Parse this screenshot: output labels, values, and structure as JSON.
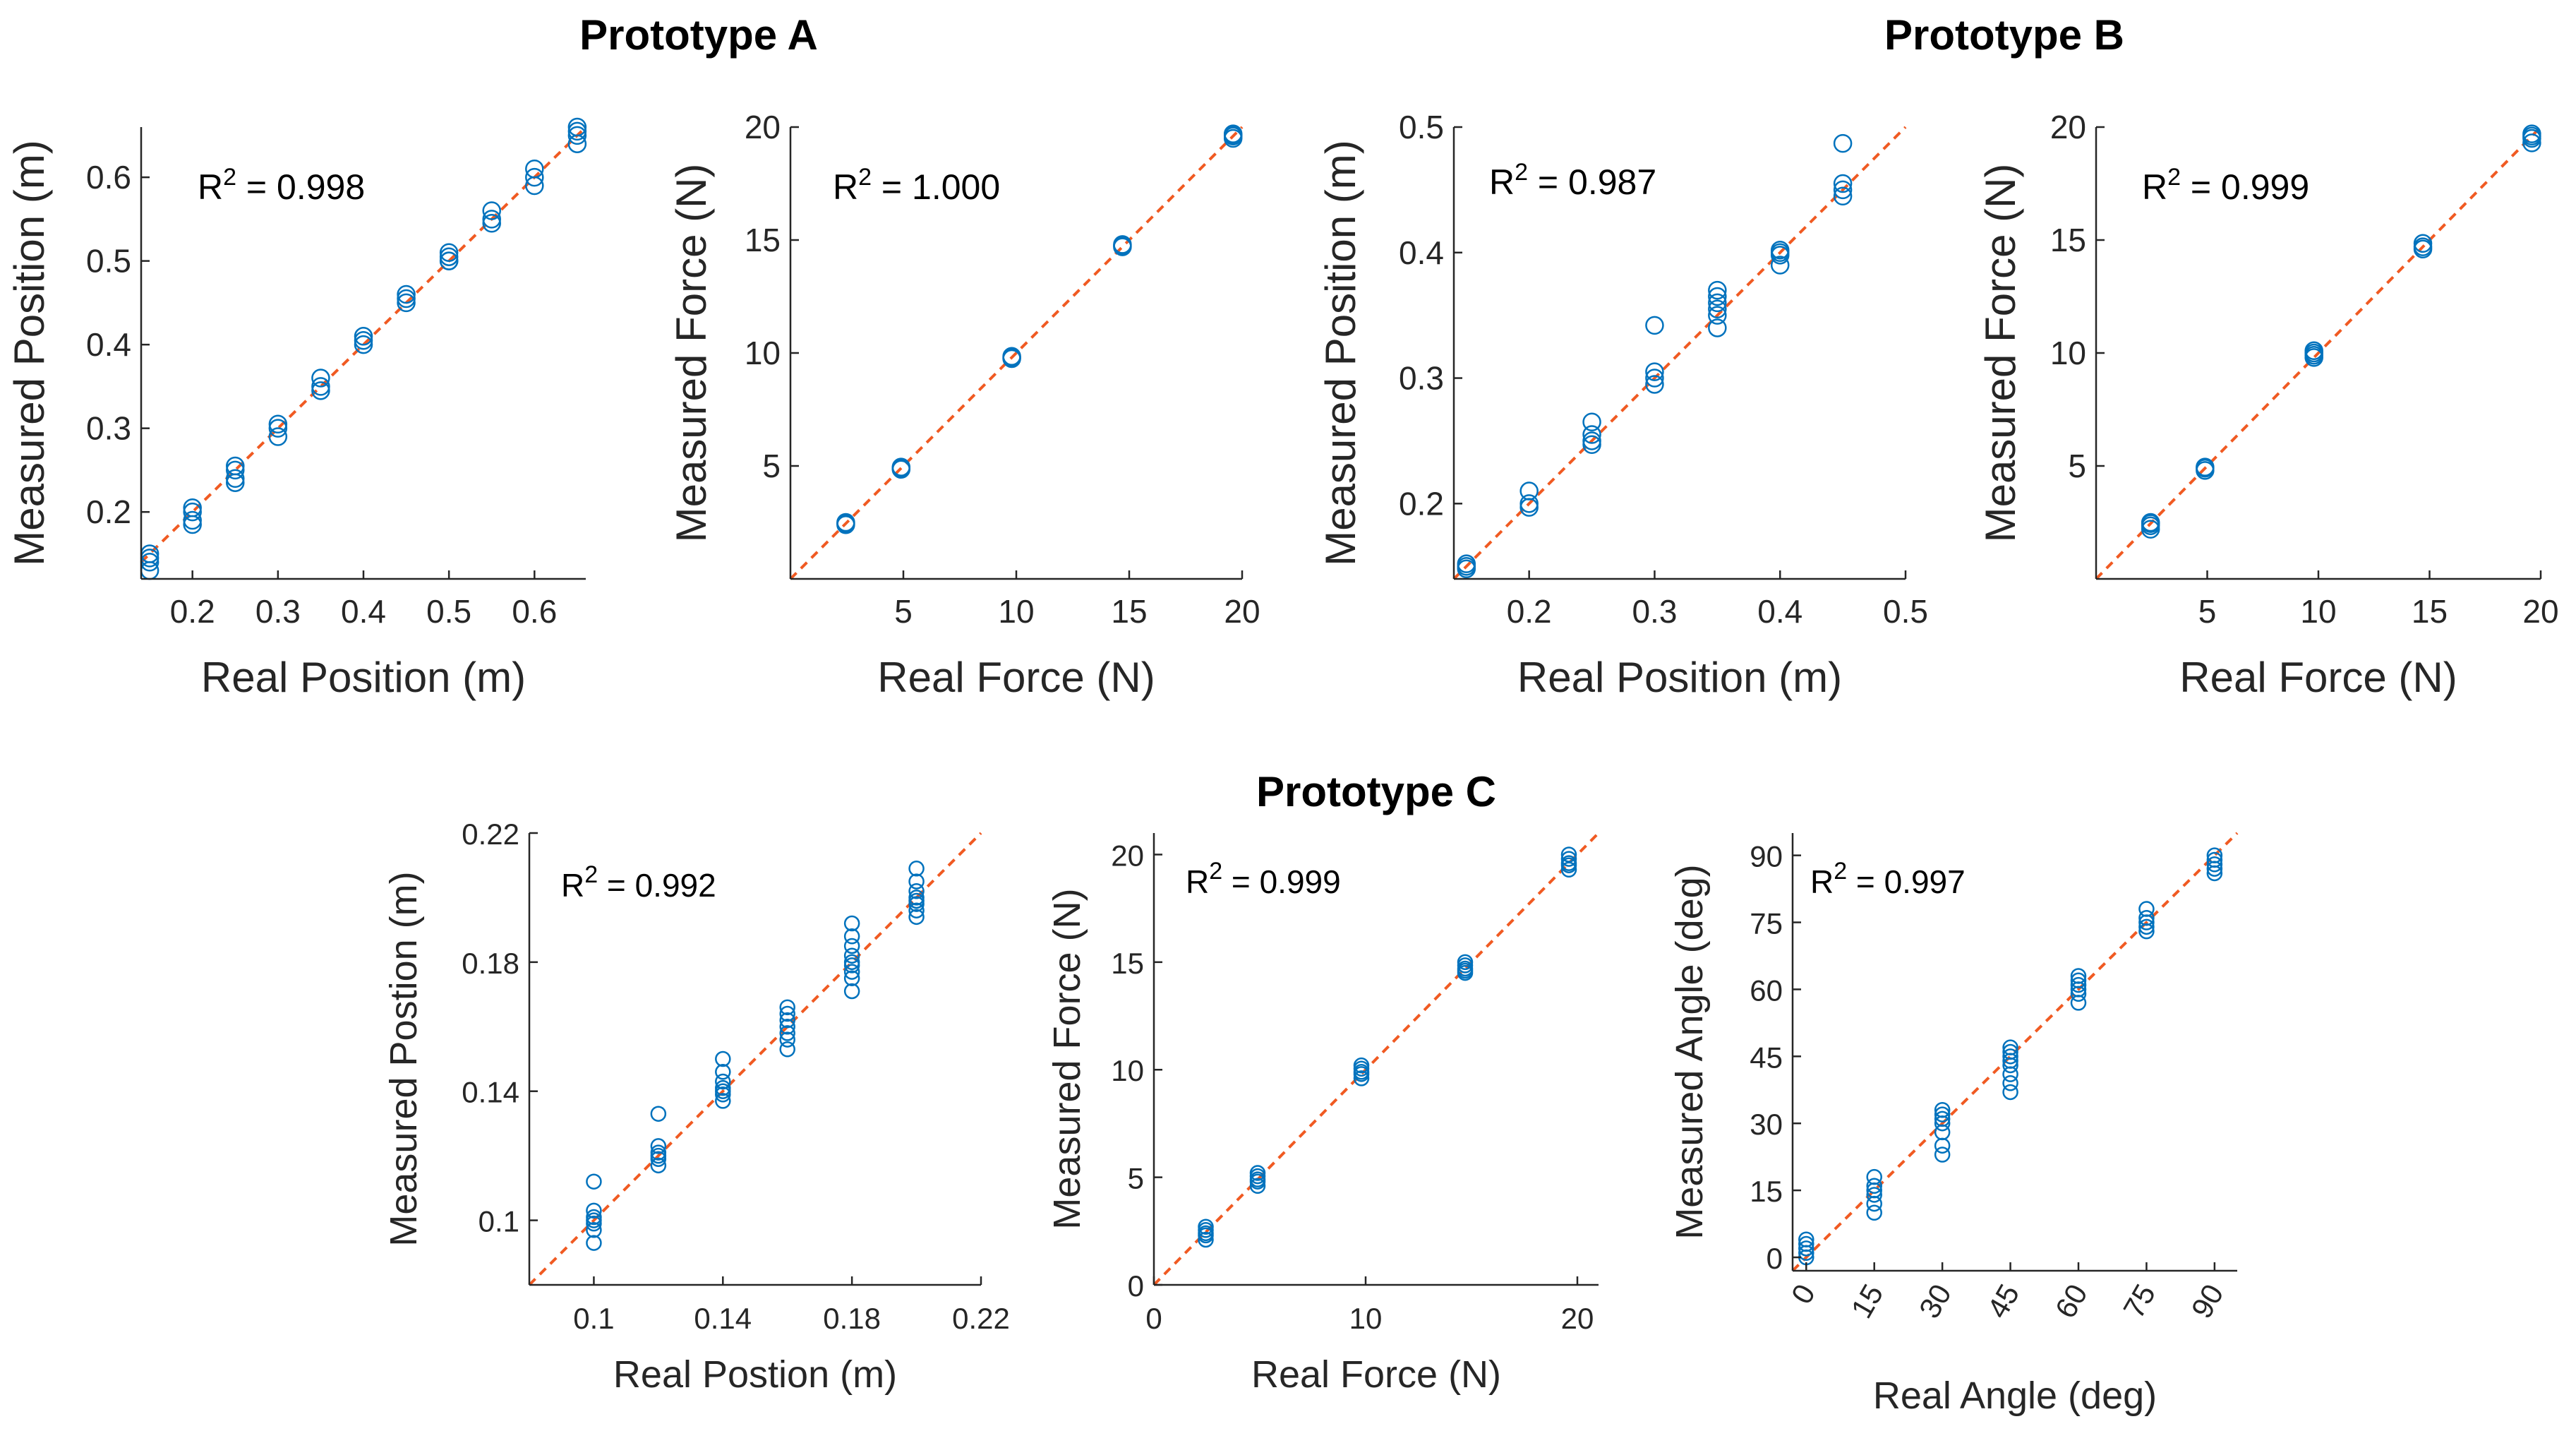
{
  "colors": {
    "points": "#0072bd",
    "fit_line": "#f05a22",
    "axes": "#262626"
  },
  "group_titles": {
    "a": "Prototype A",
    "b": "Prototype B",
    "c": "Prototype C"
  },
  "chart_data": [
    {
      "id": "a-position",
      "group": "Prototype A",
      "type": "scatter",
      "xlabel": "Real Position (m)",
      "ylabel": "Measured Position (m)",
      "xlim": [
        0.14,
        0.66
      ],
      "ylim": [
        0.12,
        0.66
      ],
      "xticks": [
        "0.2",
        "0.3",
        "0.4",
        "0.5",
        "0.6"
      ],
      "xtick_values": [
        0.2,
        0.3,
        0.4,
        0.5,
        0.6
      ],
      "yticks": [
        "0.2",
        "0.3",
        "0.4",
        "0.5",
        "0.6"
      ],
      "ytick_values": [
        0.2,
        0.3,
        0.4,
        0.5,
        0.6
      ],
      "annotation": {
        "base": "R",
        "sup": "2",
        "value": " = 0.998"
      },
      "fit_line": "y = x",
      "grid": false,
      "x": [
        0.15,
        0.15,
        0.15,
        0.15,
        0.2,
        0.2,
        0.2,
        0.2,
        0.25,
        0.25,
        0.25,
        0.25,
        0.3,
        0.3,
        0.3,
        0.35,
        0.35,
        0.35,
        0.4,
        0.4,
        0.4,
        0.45,
        0.45,
        0.45,
        0.5,
        0.5,
        0.5,
        0.5,
        0.55,
        0.55,
        0.55,
        0.6,
        0.6,
        0.6,
        0.65,
        0.65,
        0.65,
        0.65
      ],
      "y": [
        0.15,
        0.14,
        0.13,
        0.145,
        0.2,
        0.19,
        0.185,
        0.205,
        0.25,
        0.24,
        0.235,
        0.255,
        0.3,
        0.29,
        0.305,
        0.35,
        0.345,
        0.36,
        0.4,
        0.405,
        0.41,
        0.45,
        0.455,
        0.46,
        0.5,
        0.505,
        0.51,
        0.5,
        0.55,
        0.545,
        0.56,
        0.6,
        0.61,
        0.59,
        0.64,
        0.65,
        0.655,
        0.66
      ]
    },
    {
      "id": "a-force",
      "group": "Prototype A",
      "type": "scatter",
      "xlabel": "Real Force (N)",
      "ylabel": "Measured Force (N)",
      "xlim": [
        0,
        20
      ],
      "ylim": [
        0,
        20
      ],
      "xticks": [
        "5",
        "10",
        "15",
        "20"
      ],
      "xtick_values": [
        5,
        10,
        15,
        20
      ],
      "yticks": [
        "5",
        "10",
        "15",
        "20"
      ],
      "ytick_values": [
        5,
        10,
        15,
        20
      ],
      "annotation": {
        "base": "R",
        "sup": "2",
        "value": " = 1.000"
      },
      "fit_line": "y = x",
      "grid": false,
      "x": [
        2.45,
        2.45,
        2.45,
        4.9,
        4.9,
        4.9,
        9.8,
        9.8,
        9.8,
        14.7,
        14.7,
        14.7,
        19.6,
        19.6,
        19.6,
        19.6
      ],
      "y": [
        2.4,
        2.45,
        2.5,
        4.9,
        4.95,
        4.85,
        9.8,
        9.75,
        9.85,
        14.7,
        14.8,
        14.75,
        19.5,
        19.6,
        19.7,
        19.65
      ]
    },
    {
      "id": "b-position",
      "group": "Prototype B",
      "type": "scatter",
      "xlabel": "Real Position (m)",
      "ylabel": "Measured Position (m)",
      "xlim": [
        0.14,
        0.5
      ],
      "ylim": [
        0.14,
        0.5
      ],
      "xticks": [
        "0.2",
        "0.3",
        "0.4",
        "0.5"
      ],
      "xtick_values": [
        0.2,
        0.3,
        0.4,
        0.5
      ],
      "yticks": [
        "0.2",
        "0.3",
        "0.4",
        "0.5"
      ],
      "ytick_values": [
        0.2,
        0.3,
        0.4,
        0.5
      ],
      "annotation": {
        "base": "R",
        "sup": "2",
        "value": " = 0.987"
      },
      "fit_line": "y = x",
      "grid": false,
      "x": [
        0.15,
        0.15,
        0.15,
        0.2,
        0.2,
        0.2,
        0.25,
        0.25,
        0.25,
        0.25,
        0.3,
        0.3,
        0.3,
        0.3,
        0.35,
        0.35,
        0.35,
        0.35,
        0.35,
        0.35,
        0.4,
        0.4,
        0.4,
        0.4,
        0.45,
        0.45,
        0.45,
        0.45
      ],
      "y": [
        0.15,
        0.148,
        0.152,
        0.2,
        0.21,
        0.197,
        0.25,
        0.255,
        0.265,
        0.247,
        0.3,
        0.295,
        0.305,
        0.342,
        0.34,
        0.35,
        0.355,
        0.36,
        0.365,
        0.37,
        0.39,
        0.4,
        0.402,
        0.398,
        0.445,
        0.45,
        0.455,
        0.487
      ]
    },
    {
      "id": "b-force",
      "group": "Prototype B",
      "type": "scatter",
      "xlabel": "Real Force (N)",
      "ylabel": "Measured Force (N)",
      "xlim": [
        0,
        20
      ],
      "ylim": [
        0,
        20
      ],
      "xticks": [
        "5",
        "10",
        "15",
        "20"
      ],
      "xtick_values": [
        5,
        10,
        15,
        20
      ],
      "yticks": [
        "5",
        "10",
        "15",
        "20"
      ],
      "ytick_values": [
        5,
        10,
        15,
        20
      ],
      "annotation": {
        "base": "R",
        "sup": "2",
        "value": " = 0.999"
      },
      "fit_line": "y = x",
      "grid": false,
      "x": [
        2.45,
        2.45,
        2.45,
        2.45,
        4.9,
        4.9,
        4.9,
        9.8,
        9.8,
        9.8,
        9.8,
        14.7,
        14.7,
        14.7,
        19.6,
        19.6,
        19.6,
        19.6
      ],
      "y": [
        2.2,
        2.35,
        2.45,
        2.5,
        4.8,
        4.9,
        4.95,
        9.8,
        9.9,
        10.0,
        10.1,
        14.6,
        14.7,
        14.85,
        19.3,
        19.5,
        19.6,
        19.7
      ]
    },
    {
      "id": "c-position",
      "group": "Prototype C",
      "type": "scatter",
      "xlabel": "Real Postion (m)",
      "ylabel": "Measured Postion (m)",
      "xlim": [
        0.08,
        0.22
      ],
      "ylim": [
        0.08,
        0.22
      ],
      "xticks": [
        "0.1",
        "0.14",
        "0.18",
        "0.22"
      ],
      "xtick_values": [
        0.1,
        0.14,
        0.18,
        0.22
      ],
      "yticks": [
        "0.1",
        "0.14",
        "0.18",
        "0.22"
      ],
      "ytick_values": [
        0.1,
        0.14,
        0.18,
        0.22
      ],
      "annotation": {
        "base": "R",
        "sup": "2",
        "value": " = 0.992"
      },
      "fit_line": "y = x",
      "grid": false,
      "x": [
        0.1,
        0.1,
        0.1,
        0.1,
        0.1,
        0.1,
        0.1,
        0.12,
        0.12,
        0.12,
        0.12,
        0.12,
        0.12,
        0.14,
        0.14,
        0.14,
        0.14,
        0.14,
        0.14,
        0.14,
        0.16,
        0.16,
        0.16,
        0.16,
        0.16,
        0.16,
        0.16,
        0.18,
        0.18,
        0.18,
        0.18,
        0.18,
        0.18,
        0.18,
        0.18,
        0.18,
        0.2,
        0.2,
        0.2,
        0.2,
        0.2,
        0.2,
        0.2,
        0.2
      ],
      "y": [
        0.093,
        0.097,
        0.099,
        0.1,
        0.101,
        0.103,
        0.112,
        0.117,
        0.119,
        0.12,
        0.121,
        0.123,
        0.133,
        0.137,
        0.139,
        0.14,
        0.141,
        0.143,
        0.146,
        0.15,
        0.153,
        0.156,
        0.158,
        0.16,
        0.162,
        0.164,
        0.166,
        0.171,
        0.175,
        0.177,
        0.179,
        0.18,
        0.182,
        0.185,
        0.188,
        0.192,
        0.194,
        0.196,
        0.198,
        0.199,
        0.2,
        0.202,
        0.205,
        0.209
      ]
    },
    {
      "id": "c-force",
      "group": "Prototype C",
      "type": "scatter",
      "xlabel": "Real Force (N)",
      "ylabel": "Measured Force (N)",
      "xlim": [
        0,
        21
      ],
      "ylim": [
        0,
        21
      ],
      "xticks": [
        "0",
        "10",
        "20"
      ],
      "xtick_values": [
        0,
        10,
        20
      ],
      "yticks": [
        "0",
        "5",
        "10",
        "15",
        "20"
      ],
      "ytick_values": [
        0,
        5,
        10,
        15,
        20
      ],
      "annotation": {
        "base": "R",
        "sup": "2",
        "value": " = 0.999"
      },
      "fit_line": "y = x",
      "grid": false,
      "x": [
        2.45,
        2.45,
        2.45,
        2.45,
        2.45,
        4.9,
        4.9,
        4.9,
        4.9,
        4.9,
        9.8,
        9.8,
        9.8,
        9.8,
        9.8,
        14.7,
        14.7,
        14.7,
        14.7,
        14.7,
        19.6,
        19.6,
        19.6,
        19.6,
        19.6
      ],
      "y": [
        2.1,
        2.3,
        2.4,
        2.55,
        2.7,
        4.6,
        4.8,
        4.9,
        5.05,
        5.2,
        9.6,
        9.8,
        9.9,
        10.05,
        10.2,
        14.5,
        14.6,
        14.7,
        14.85,
        15.0,
        19.3,
        19.5,
        19.6,
        19.8,
        20.0
      ]
    },
    {
      "id": "c-angle",
      "group": "Prototype C",
      "type": "scatter",
      "xlabel": "Real Angle (deg)",
      "ylabel": "Measured Angle (deg)",
      "xlim": [
        -3,
        95
      ],
      "ylim": [
        -3,
        95
      ],
      "xticks": [
        "0",
        "15",
        "30",
        "45",
        "60",
        "75",
        "90"
      ],
      "xtick_values": [
        0,
        15,
        30,
        45,
        60,
        75,
        90
      ],
      "yticks": [
        "0",
        "15",
        "30",
        "45",
        "60",
        "75",
        "90"
      ],
      "ytick_values": [
        0,
        15,
        30,
        45,
        60,
        75,
        90
      ],
      "annotation": {
        "base": "R",
        "sup": "2",
        "value": " = 0.997"
      },
      "fit_line": "y = x",
      "grid": false,
      "x": [
        0,
        0,
        0,
        0,
        0,
        15,
        15,
        15,
        15,
        15,
        15,
        30,
        30,
        30,
        30,
        30,
        30,
        30,
        45,
        45,
        45,
        45,
        45,
        45,
        45,
        45,
        60,
        60,
        60,
        60,
        60,
        60,
        75,
        75,
        75,
        75,
        75,
        90,
        90,
        90,
        90,
        90
      ],
      "y": [
        0,
        1,
        2,
        3,
        4,
        10,
        12,
        14,
        15,
        16,
        18,
        23,
        25,
        28,
        30,
        31,
        32,
        33,
        37,
        39,
        41,
        43,
        44,
        45,
        46,
        47,
        57,
        59,
        60,
        61,
        62,
        63,
        73,
        74,
        75,
        76,
        78,
        86,
        87,
        88,
        89,
        90
      ]
    }
  ]
}
